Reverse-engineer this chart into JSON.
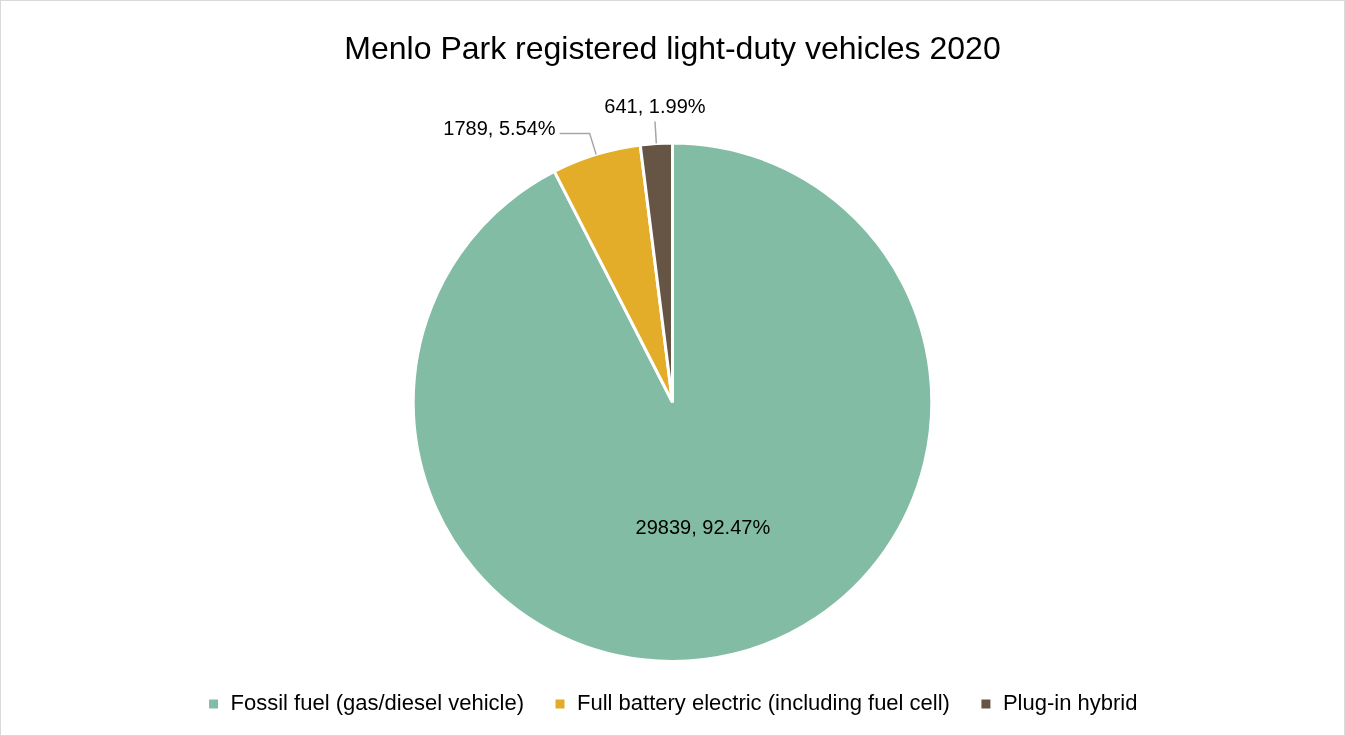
{
  "chart_data": {
    "type": "pie",
    "title": "Menlo Park registered light-duty vehicles 2020",
    "categories": [
      "Fossil fuel (gas/diesel vehicle)",
      "Full battery electric (including fuel cell)",
      "Plug-in hybrid"
    ],
    "values": [
      29839,
      1789,
      641
    ],
    "colors": [
      "#82bca4",
      "#e3ad29",
      "#665544"
    ],
    "value_labels": [
      "29839, 92.47%",
      "1789, 5.54%",
      "641, 1.99%"
    ],
    "legend": "bottom"
  }
}
